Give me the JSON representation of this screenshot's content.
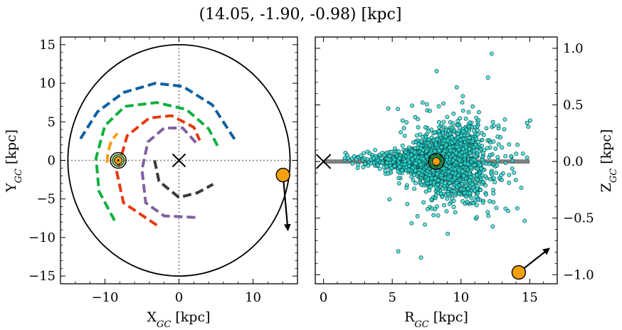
{
  "title": "(14.05, -1.90, -0.98) [kpc]",
  "colors": {
    "marker_fill": "#f5a00f",
    "arrow": "#000000",
    "scatter_fill": "#2fe0d8",
    "scatter_edge": "#0b4a48",
    "plane": "#808080",
    "sun_edge_inner": "#2a6b00",
    "sun_edge_outer": "#000000"
  },
  "chart_data": [
    {
      "type": "line",
      "panel": "left",
      "xlabel": "X",
      "xlabel_sub": "GC",
      "xlabel_unit": " [kpc]",
      "ylabel": "Y",
      "ylabel_sub": "GC",
      "ylabel_unit": " [kpc]",
      "xlim": [
        -16,
        16
      ],
      "ylim": [
        -16,
        16
      ],
      "xticks": [
        {
          "v": -10,
          "label": "−10"
        },
        {
          "v": 0,
          "label": "0"
        },
        {
          "v": 10,
          "label": "10"
        }
      ],
      "yticks": [
        {
          "v": -15,
          "label": "−15"
        },
        {
          "v": -10,
          "label": "−10"
        },
        {
          "v": -5,
          "label": "−5"
        },
        {
          "v": 0,
          "label": "0"
        },
        {
          "v": 5,
          "label": "5"
        },
        {
          "v": 10,
          "label": "10"
        },
        {
          "v": 15,
          "label": "15"
        }
      ],
      "boundary_circle_radius": 15,
      "crosshair_lines": {
        "x": 0,
        "y": 0
      },
      "galactic_center": [
        0,
        0
      ],
      "sun": [
        -8.2,
        0
      ],
      "object": [
        14.05,
        -1.9
      ],
      "velocity_arrow": {
        "start": [
          14.05,
          -1.9
        ],
        "end": [
          14.7,
          -9.0
        ]
      },
      "series": [
        {
          "color": "#1060a0",
          "width": 4,
          "values": [
            [
              -13.3,
              2.8
            ],
            [
              -11.0,
              6.3
            ],
            [
              -7.5,
              8.8
            ],
            [
              -3.2,
              10.0
            ],
            [
              0.5,
              9.6
            ],
            [
              4.5,
              7.2
            ],
            [
              7.6,
              2.6
            ]
          ]
        },
        {
          "color": "#10b040",
          "width": 4,
          "values": [
            [
              -8.7,
              -7.8
            ],
            [
              -10.8,
              -4.0
            ],
            [
              -11.2,
              0.3
            ],
            [
              -10.0,
              4.5
            ],
            [
              -7.3,
              7.0
            ],
            [
              -3.0,
              7.5
            ],
            [
              1.0,
              6.6
            ],
            [
              4.0,
              4.1
            ],
            [
              5.2,
              1.9
            ]
          ]
        },
        {
          "color": "#e83a10",
          "width": 4,
          "values": [
            [
              -3.0,
              -8.4
            ],
            [
              -7.5,
              -5.5
            ],
            [
              -8.4,
              -1.5
            ],
            [
              -7.0,
              3.2
            ],
            [
              -4.0,
              5.5
            ],
            [
              -1.0,
              5.8
            ],
            [
              2.0,
              4.3
            ],
            [
              2.8,
              2.6
            ]
          ]
        },
        {
          "color": "#8060a0",
          "width": 4,
          "values": [
            [
              2.2,
              -7.4
            ],
            [
              -2.0,
              -7.2
            ],
            [
              -4.5,
              -5.5
            ],
            [
              -5.0,
              -1.2
            ],
            [
              -4.2,
              2.4
            ],
            [
              -2.0,
              4.2
            ],
            [
              0.5,
              4.2
            ],
            [
              2.3,
              2.3
            ]
          ]
        },
        {
          "color": "#3a3a3a",
          "width": 4,
          "values": [
            [
              -3.3,
              0.0
            ],
            [
              -2.7,
              -2.7
            ],
            [
              0.0,
              -4.8
            ],
            [
              2.5,
              -4.2
            ],
            [
              4.6,
              -3.1
            ]
          ]
        },
        {
          "color": "#f5a00f",
          "width": 4,
          "values": [
            [
              -9.7,
              -0.3
            ],
            [
              -9.6,
              1.1
            ],
            [
              -9.1,
              2.6
            ],
            [
              -8.3,
              3.5
            ]
          ]
        }
      ]
    },
    {
      "type": "scatter",
      "panel": "right",
      "xlabel": "R",
      "xlabel_sub": "GC",
      "xlabel_unit": " [kpc]",
      "ylabel": "Z",
      "ylabel_sub": "GC",
      "ylabel_unit": " [kpc]",
      "xlim": [
        -0.6,
        17.0
      ],
      "ylim": [
        -1.08,
        1.1
      ],
      "xticks": [
        {
          "v": 0,
          "label": "0"
        },
        {
          "v": 5,
          "label": "5"
        },
        {
          "v": 10,
          "label": "10"
        },
        {
          "v": 15,
          "label": "15"
        }
      ],
      "yticks": [
        {
          "v": -1.0,
          "label": "−1.0"
        },
        {
          "v": -0.5,
          "label": "−0.5"
        },
        {
          "v": 0.0,
          "label": "0.0"
        },
        {
          "v": 0.5,
          "label": "0.5"
        },
        {
          "v": 1.0,
          "label": "1.0"
        }
      ],
      "galactic_plane": {
        "x": [
          0,
          15
        ],
        "z": 0
      },
      "galactic_center": [
        0,
        0
      ],
      "sun": [
        8.2,
        0.0
      ],
      "object": [
        14.2,
        -0.98
      ],
      "velocity_arrow": {
        "start": [
          14.2,
          -0.98
        ],
        "end": [
          16.4,
          -0.77
        ]
      },
      "point_count": 2400
    }
  ]
}
